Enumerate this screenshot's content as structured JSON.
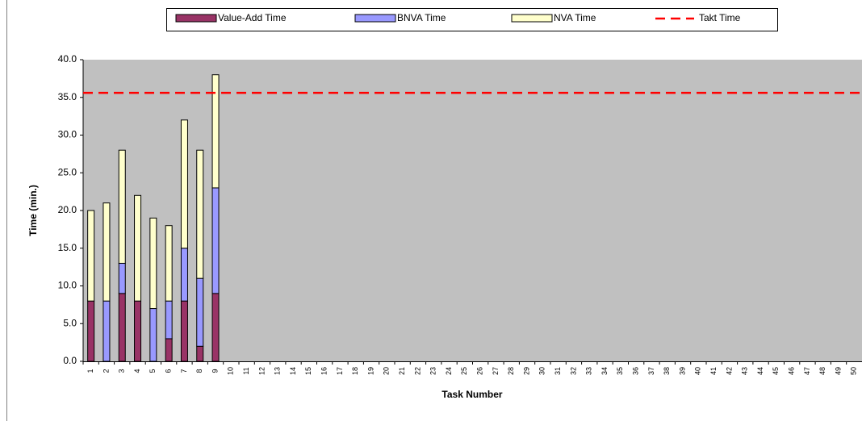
{
  "chart_data": {
    "type": "bar",
    "stacked": true,
    "x_label": "Task Number",
    "y_label": "Time (min.)",
    "categories": [
      "1",
      "2",
      "3",
      "4",
      "5",
      "6",
      "7",
      "8",
      "9",
      "10",
      "11",
      "12",
      "13",
      "14",
      "15",
      "16",
      "17",
      "18",
      "19",
      "20",
      "21",
      "22",
      "23",
      "24",
      "25",
      "26",
      "27",
      "28",
      "29",
      "30",
      "31",
      "32",
      "33",
      "34",
      "35",
      "36",
      "37",
      "38",
      "39",
      "40",
      "41",
      "42",
      "43",
      "44",
      "45",
      "46",
      "47",
      "48",
      "49",
      "50"
    ],
    "series": [
      {
        "name": "Value-Add Time",
        "color": "#993366",
        "values": [
          8,
          0,
          9,
          8,
          0,
          3,
          8,
          2,
          9,
          null,
          null,
          null,
          null,
          null,
          null,
          null,
          null,
          null,
          null,
          null,
          null,
          null,
          null,
          null,
          null,
          null,
          null,
          null,
          null,
          null,
          null,
          null,
          null,
          null,
          null,
          null,
          null,
          null,
          null,
          null,
          null,
          null,
          null,
          null,
          null,
          null,
          null,
          null,
          null,
          null
        ]
      },
      {
        "name": "BNVA Time",
        "color": "#9999ff",
        "values": [
          0,
          8,
          4,
          0,
          7,
          5,
          7,
          9,
          14,
          null,
          null,
          null,
          null,
          null,
          null,
          null,
          null,
          null,
          null,
          null,
          null,
          null,
          null,
          null,
          null,
          null,
          null,
          null,
          null,
          null,
          null,
          null,
          null,
          null,
          null,
          null,
          null,
          null,
          null,
          null,
          null,
          null,
          null,
          null,
          null,
          null,
          null,
          null,
          null,
          null
        ]
      },
      {
        "name": "NVA Time",
        "color": "#ffffcc",
        "values": [
          12,
          13,
          15,
          14,
          12,
          10,
          17,
          17,
          15,
          null,
          null,
          null,
          null,
          null,
          null,
          null,
          null,
          null,
          null,
          null,
          null,
          null,
          null,
          null,
          null,
          null,
          null,
          null,
          null,
          null,
          null,
          null,
          null,
          null,
          null,
          null,
          null,
          null,
          null,
          null,
          null,
          null,
          null,
          null,
          null,
          null,
          null,
          null,
          null,
          null
        ]
      }
    ],
    "lines": [
      {
        "name": "Takt Time",
        "color": "#ff0000",
        "value": 35.6
      }
    ],
    "ylim": [
      0,
      40
    ],
    "yticks": [
      {
        "value": 0,
        "label": "0.0"
      },
      {
        "value": 5,
        "label": "5.0"
      },
      {
        "value": 10,
        "label": "10.0"
      },
      {
        "value": 15,
        "label": "15.0"
      },
      {
        "value": 20,
        "label": "20.0"
      },
      {
        "value": 25,
        "label": "25.0"
      },
      {
        "value": 30,
        "label": "30.0"
      },
      {
        "value": 35,
        "label": "35.0"
      },
      {
        "value": 40,
        "label": "40.0"
      }
    ],
    "plot_background": "#c0c0c0",
    "legend": "top"
  }
}
